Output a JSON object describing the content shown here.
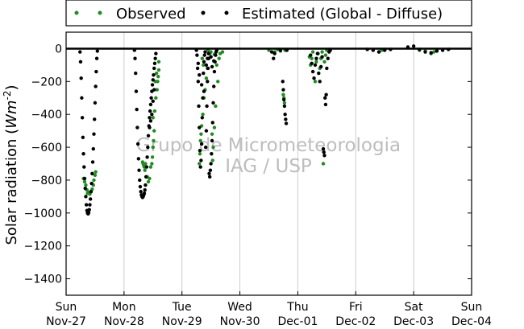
{
  "chart_data": {
    "type": "scatter",
    "ylabel": "Solar radiation (Wm^-2)",
    "ylabel_main": "Solar radiation (",
    "ylabel_unit": "Wm",
    "ylabel_exp": "-2",
    "ylabel_close": ")",
    "ylim": [
      -1500,
      100
    ],
    "yticks": [
      0,
      -200,
      -400,
      -600,
      -800,
      -1000,
      -1200,
      -1400
    ],
    "x_days": [
      "Sun",
      "Mon",
      "Tue",
      "Wed",
      "Thu",
      "Fri",
      "Sat",
      "Sun"
    ],
    "x_dates": [
      "Nov-27",
      "Nov-28",
      "Nov-29",
      "Nov-30",
      "Dec-01",
      "Dec-02",
      "Dec-03",
      "Dec-04"
    ],
    "xlim_days": [
      0,
      7
    ],
    "grid": "vertical at day boundaries",
    "legend_position": "top, above plot",
    "watermark": [
      "Grupo de Micrometeorologia",
      "IAG / USP"
    ],
    "series": [
      {
        "name": "Observed",
        "color": "#228b22",
        "points": [
          [
            0.3,
            -790
          ],
          [
            0.32,
            -810
          ],
          [
            0.34,
            -830
          ],
          [
            0.36,
            -860
          ],
          [
            0.37,
            -880
          ],
          [
            0.39,
            -875
          ],
          [
            0.41,
            -885
          ],
          [
            0.43,
            -870
          ],
          [
            0.45,
            -855
          ],
          [
            0.47,
            -830
          ],
          [
            0.48,
            -800
          ],
          [
            0.5,
            -770
          ],
          [
            0.51,
            -750
          ],
          [
            1.32,
            -690
          ],
          [
            1.33,
            -700
          ],
          [
            1.34,
            -710
          ],
          [
            1.35,
            -720
          ],
          [
            1.36,
            -740
          ],
          [
            1.37,
            -700
          ],
          [
            1.4,
            -780
          ],
          [
            1.42,
            -810
          ],
          [
            1.44,
            -790
          ],
          [
            1.46,
            -720
          ],
          [
            1.48,
            -700
          ],
          [
            1.49,
            -660
          ],
          [
            1.5,
            -600
          ],
          [
            1.51,
            -560
          ],
          [
            1.52,
            -500
          ],
          [
            1.5,
            -420
          ],
          [
            1.53,
            -380
          ],
          [
            1.55,
            -300
          ],
          [
            1.57,
            -250
          ],
          [
            1.58,
            -200
          ],
          [
            1.59,
            -170
          ],
          [
            1.6,
            -130
          ],
          [
            1.6,
            -80
          ],
          [
            1.56,
            -150
          ],
          [
            1.54,
            -200
          ],
          [
            2.3,
            -700
          ],
          [
            2.31,
            -640
          ],
          [
            2.32,
            -560
          ],
          [
            2.33,
            -520
          ],
          [
            2.34,
            -470
          ],
          [
            2.36,
            -400
          ],
          [
            2.38,
            -300
          ],
          [
            2.4,
            -250
          ],
          [
            2.42,
            -180
          ],
          [
            2.44,
            -120
          ],
          [
            2.46,
            -60
          ],
          [
            2.48,
            -30
          ],
          [
            2.5,
            -20
          ],
          [
            2.52,
            -520
          ],
          [
            2.53,
            -680
          ],
          [
            2.54,
            -600
          ],
          [
            2.56,
            -480
          ],
          [
            2.58,
            -350
          ],
          [
            2.6,
            -100
          ],
          [
            2.62,
            -200
          ],
          [
            2.64,
            -60
          ],
          [
            2.66,
            -30
          ],
          [
            2.7,
            -20
          ],
          [
            2.35,
            -60
          ],
          [
            2.37,
            -100
          ],
          [
            2.45,
            -10
          ],
          [
            2.56,
            -35
          ],
          [
            3.5,
            -10
          ],
          [
            3.6,
            -20
          ],
          [
            3.65,
            -5
          ],
          [
            3.7,
            -15
          ],
          [
            3.75,
            -280
          ],
          [
            3.76,
            -300
          ],
          [
            3.77,
            -330
          ],
          [
            3.78,
            -10
          ],
          [
            4.2,
            -50
          ],
          [
            4.22,
            -100
          ],
          [
            4.24,
            -60
          ],
          [
            4.26,
            -20
          ],
          [
            4.3,
            -200
          ],
          [
            4.32,
            -80
          ],
          [
            4.35,
            -30
          ],
          [
            4.38,
            -120
          ],
          [
            4.4,
            -60
          ],
          [
            4.42,
            -20
          ],
          [
            4.44,
            -700
          ],
          [
            4.46,
            -80
          ],
          [
            4.48,
            -40
          ],
          [
            4.5,
            -10
          ],
          [
            4.55,
            -5
          ],
          [
            5.4,
            -20
          ],
          [
            5.45,
            -10
          ],
          [
            5.5,
            -5
          ],
          [
            6.1,
            -10
          ],
          [
            6.2,
            -15
          ],
          [
            6.3,
            -30
          ],
          [
            6.35,
            -20
          ],
          [
            6.4,
            -10
          ]
        ]
      },
      {
        "name": "Estimated (Global - Diffuse)",
        "color": "#000000",
        "points": [
          [
            0.24,
            -20
          ],
          [
            0.25,
            -80
          ],
          [
            0.26,
            -180
          ],
          [
            0.27,
            -300
          ],
          [
            0.28,
            -420
          ],
          [
            0.29,
            -540
          ],
          [
            0.3,
            -640
          ],
          [
            0.31,
            -720
          ],
          [
            0.32,
            -790
          ],
          [
            0.33,
            -850
          ],
          [
            0.34,
            -900
          ],
          [
            0.35,
            -950
          ],
          [
            0.36,
            -985
          ],
          [
            0.37,
            -1000
          ],
          [
            0.38,
            -1005
          ],
          [
            0.39,
            -998
          ],
          [
            0.4,
            -980
          ],
          [
            0.41,
            -950
          ],
          [
            0.42,
            -915
          ],
          [
            0.43,
            -870
          ],
          [
            0.44,
            -820
          ],
          [
            0.45,
            -760
          ],
          [
            0.46,
            -690
          ],
          [
            0.47,
            -610
          ],
          [
            0.48,
            -520
          ],
          [
            0.49,
            -430
          ],
          [
            0.5,
            -330
          ],
          [
            0.51,
            -230
          ],
          [
            0.52,
            -140
          ],
          [
            0.53,
            -60
          ],
          [
            0.54,
            -15
          ],
          [
            1.18,
            -10
          ],
          [
            1.19,
            -60
          ],
          [
            1.2,
            -150
          ],
          [
            1.21,
            -260
          ],
          [
            1.22,
            -370
          ],
          [
            1.23,
            -480
          ],
          [
            1.24,
            -580
          ],
          [
            1.25,
            -670
          ],
          [
            1.26,
            -740
          ],
          [
            1.27,
            -800
          ],
          [
            1.28,
            -840
          ],
          [
            1.29,
            -870
          ],
          [
            1.3,
            -890
          ],
          [
            1.31,
            -900
          ],
          [
            1.32,
            -905
          ],
          [
            1.33,
            -900
          ],
          [
            1.34,
            -890
          ],
          [
            1.35,
            -880
          ],
          [
            1.36,
            -860
          ],
          [
            1.37,
            -830
          ],
          [
            1.38,
            -780
          ],
          [
            1.39,
            -720
          ],
          [
            1.4,
            -660
          ],
          [
            1.41,
            -600
          ],
          [
            1.42,
            -530
          ],
          [
            1.43,
            -470
          ],
          [
            1.44,
            -420
          ],
          [
            1.45,
            -380
          ],
          [
            1.46,
            -340
          ],
          [
            1.47,
            -300
          ],
          [
            1.48,
            -260
          ],
          [
            1.49,
            -220
          ],
          [
            1.5,
            -190
          ],
          [
            1.51,
            -160
          ],
          [
            1.52,
            -120
          ],
          [
            1.53,
            -90
          ],
          [
            1.54,
            -60
          ],
          [
            1.55,
            -30
          ],
          [
            1.44,
            -480
          ],
          [
            1.46,
            -440
          ],
          [
            1.48,
            -400
          ],
          [
            1.5,
            -320
          ],
          [
            1.52,
            -250
          ],
          [
            2.25,
            -10
          ],
          [
            2.26,
            -40
          ],
          [
            2.27,
            -120
          ],
          [
            2.28,
            -200
          ],
          [
            2.29,
            -350
          ],
          [
            2.3,
            -480
          ],
          [
            2.31,
            -620
          ],
          [
            2.32,
            -720
          ],
          [
            2.33,
            -680
          ],
          [
            2.34,
            -580
          ],
          [
            2.35,
            -420
          ],
          [
            2.36,
            -300
          ],
          [
            2.37,
            -150
          ],
          [
            2.38,
            -80
          ],
          [
            2.39,
            -40
          ],
          [
            2.4,
            -20
          ],
          [
            2.41,
            -600
          ],
          [
            2.42,
            -500
          ],
          [
            2.43,
            -350
          ],
          [
            2.44,
            -200
          ],
          [
            2.45,
            -120
          ],
          [
            2.46,
            -60
          ],
          [
            2.47,
            -760
          ],
          [
            2.48,
            -780
          ],
          [
            2.49,
            -740
          ],
          [
            2.5,
            -700
          ],
          [
            2.51,
            -640
          ],
          [
            2.52,
            -560
          ],
          [
            2.53,
            -450
          ],
          [
            2.54,
            -330
          ],
          [
            2.55,
            -230
          ],
          [
            2.56,
            -140
          ],
          [
            2.57,
            -80
          ],
          [
            2.58,
            -40
          ],
          [
            2.59,
            -20
          ],
          [
            2.6,
            -10
          ],
          [
            2.28,
            -90
          ],
          [
            2.3,
            -160
          ],
          [
            2.34,
            -220
          ],
          [
            2.38,
            -260
          ],
          [
            2.42,
            -100
          ],
          [
            2.44,
            -60
          ],
          [
            2.46,
            -30
          ],
          [
            2.5,
            -50
          ],
          [
            2.52,
            -110
          ],
          [
            2.55,
            -75
          ],
          [
            3.55,
            -20
          ],
          [
            3.58,
            -60
          ],
          [
            3.6,
            -30
          ],
          [
            3.7,
            -10
          ],
          [
            3.74,
            -200
          ],
          [
            3.75,
            -250
          ],
          [
            3.76,
            -310
          ],
          [
            3.77,
            -350
          ],
          [
            3.78,
            -400
          ],
          [
            3.79,
            -430
          ],
          [
            3.8,
            -455
          ],
          [
            3.81,
            -10
          ],
          [
            4.22,
            -40
          ],
          [
            4.24,
            -90
          ],
          [
            4.26,
            -140
          ],
          [
            4.28,
            -180
          ],
          [
            4.3,
            -100
          ],
          [
            4.32,
            -60
          ],
          [
            4.34,
            -30
          ],
          [
            4.36,
            -150
          ],
          [
            4.38,
            -200
          ],
          [
            4.4,
            -110
          ],
          [
            4.42,
            -50
          ],
          [
            4.44,
            -610
          ],
          [
            4.45,
            -630
          ],
          [
            4.46,
            -650
          ],
          [
            4.47,
            -300
          ],
          [
            4.48,
            -340
          ],
          [
            4.49,
            -280
          ],
          [
            4.5,
            -120
          ],
          [
            4.52,
            -60
          ],
          [
            4.54,
            -20
          ],
          [
            4.56,
            -10
          ],
          [
            5.2,
            -5
          ],
          [
            5.3,
            -10
          ],
          [
            5.4,
            -20
          ],
          [
            5.5,
            -10
          ],
          [
            5.6,
            -5
          ],
          [
            5.9,
            10
          ],
          [
            6.0,
            15
          ],
          [
            6.1,
            -5
          ],
          [
            6.2,
            -20
          ],
          [
            6.3,
            -25
          ],
          [
            6.4,
            -15
          ],
          [
            6.5,
            -10
          ],
          [
            6.6,
            -5
          ]
        ]
      }
    ]
  }
}
